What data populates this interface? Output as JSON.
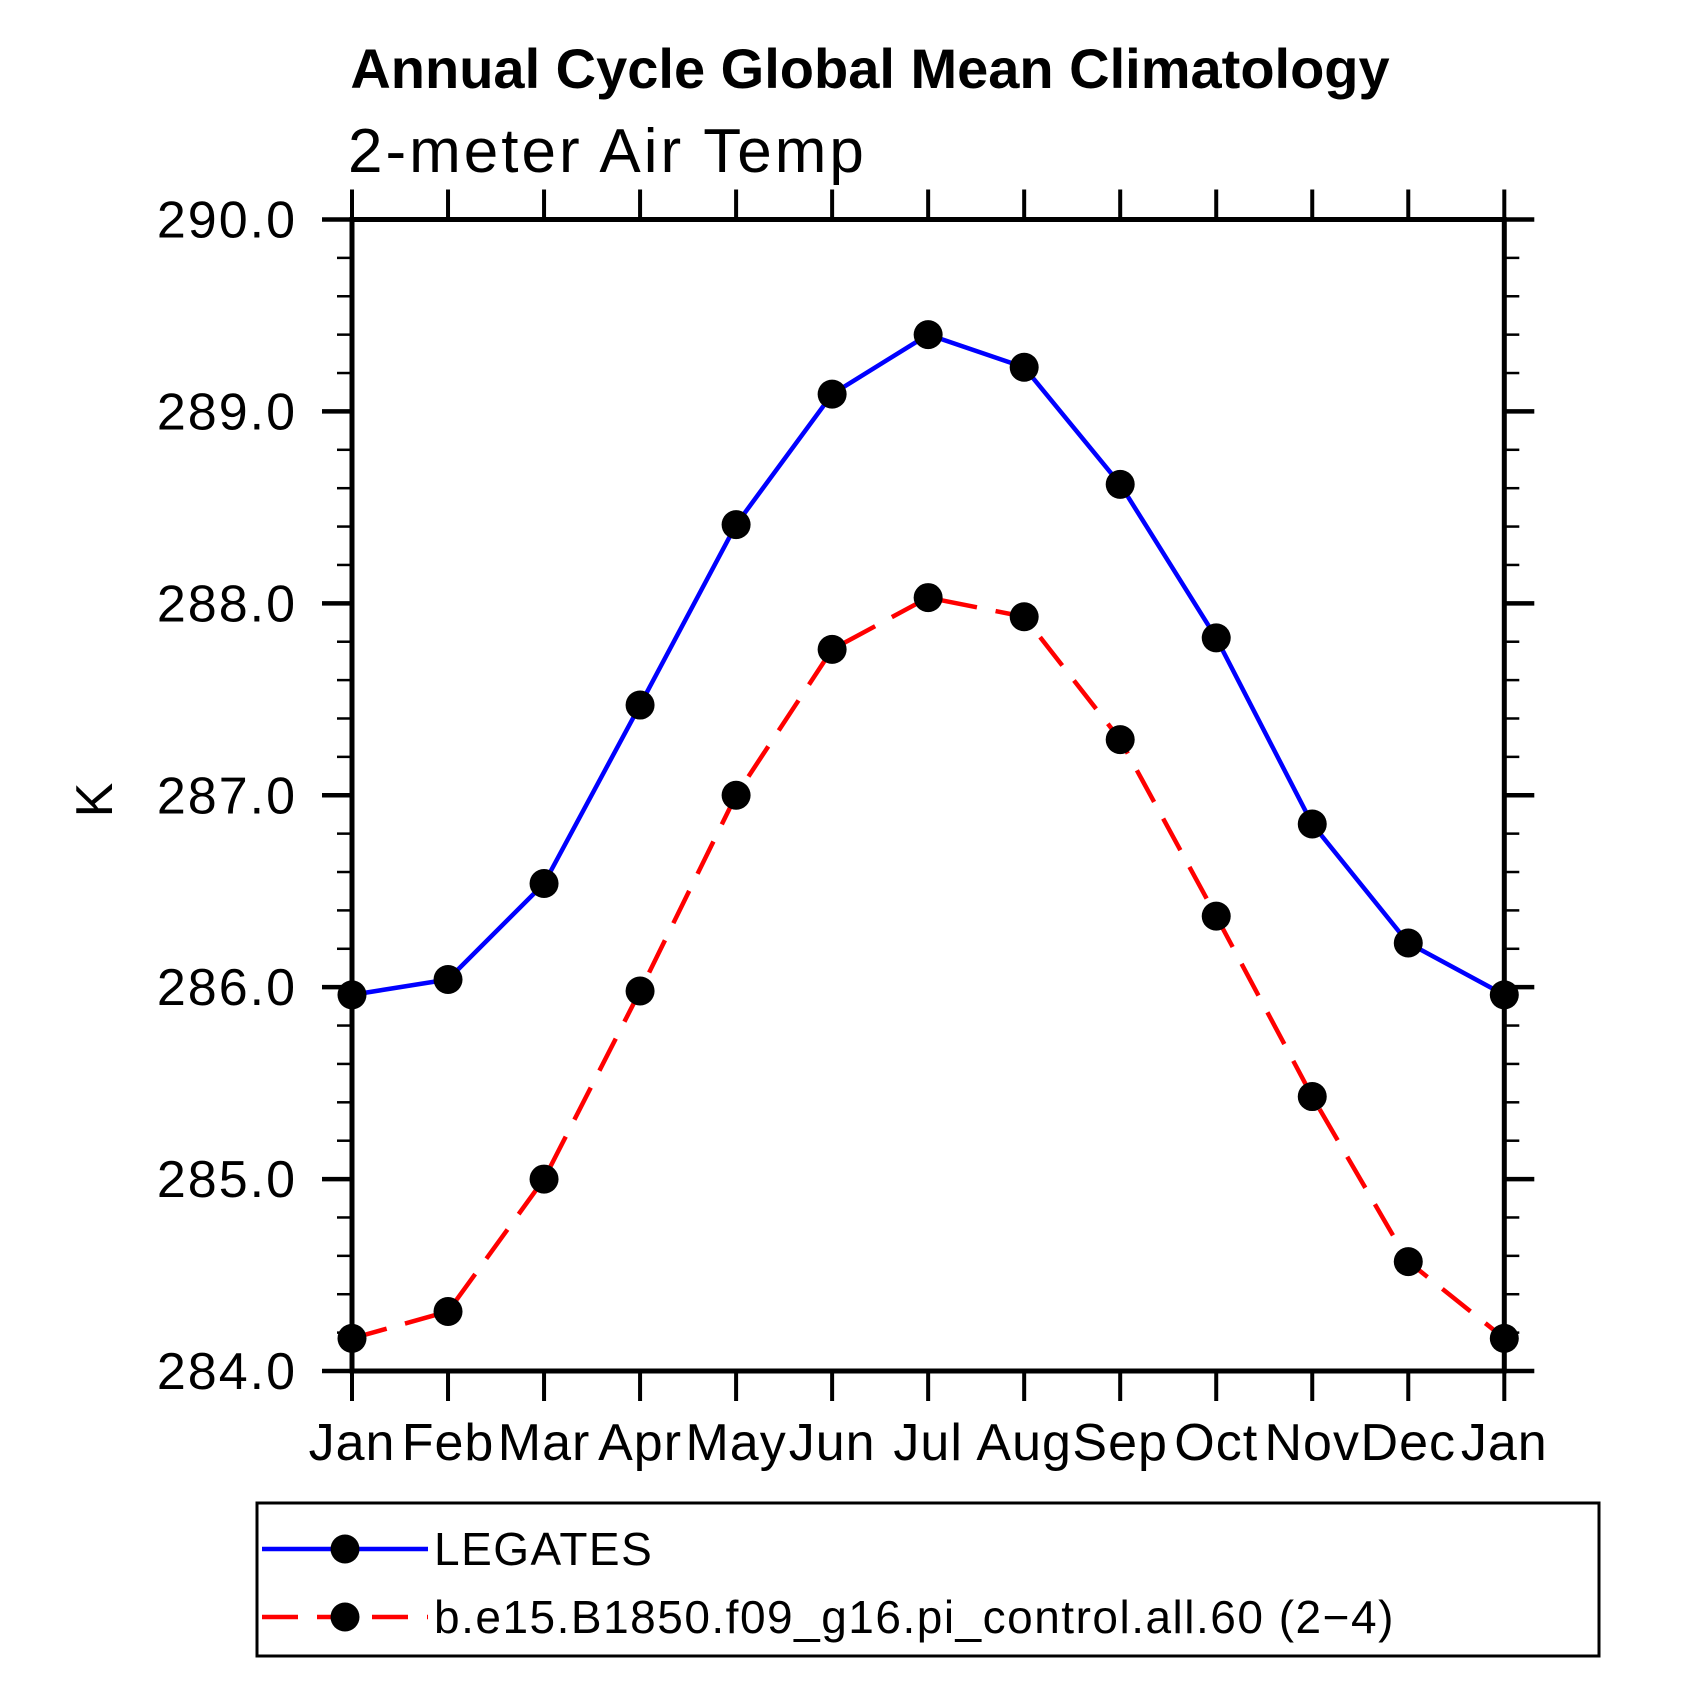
{
  "title": "Annual Cycle Global Mean Climatology",
  "subtitle": "2-meter Air Temp",
  "chart_data": {
    "type": "line",
    "title": "Annual Cycle Global Mean Climatology",
    "subtitle": "2-meter Air Temp",
    "ylabel": "K",
    "xlabel": "",
    "categories": [
      "Jan",
      "Feb",
      "Mar",
      "Apr",
      "May",
      "Jun",
      "Jul",
      "Aug",
      "Sep",
      "Oct",
      "Nov",
      "Dec",
      "Jan"
    ],
    "series": [
      {
        "name": "LEGATES",
        "color": "#0000ff",
        "line_style": "solid",
        "marker": "circle",
        "marker_color": "#000000",
        "values": [
          285.96,
          286.04,
          286.54,
          287.47,
          288.41,
          289.09,
          289.4,
          289.23,
          288.62,
          287.82,
          286.85,
          286.23,
          285.96
        ]
      },
      {
        "name": "b.e15.B1850.f09_g16.pi_control.all.60 (2−4)",
        "color": "#ff0000",
        "line_style": "dashed",
        "marker": "circle",
        "marker_color": "#000000",
        "values": [
          284.17,
          284.31,
          285.0,
          285.98,
          287.0,
          287.76,
          288.03,
          287.93,
          287.29,
          286.37,
          285.43,
          284.57,
          284.17
        ]
      }
    ],
    "ylim": [
      284.0,
      290.0
    ],
    "ytick_major_step": 1.0,
    "ytick_minor_step": 0.2,
    "ytick_labels": [
      "284.0",
      "285.0",
      "286.0",
      "287.0",
      "288.0",
      "289.0",
      "290.0"
    ],
    "grid": false,
    "legend_position": "bottom-left-box",
    "axis_color": "#000000",
    "background_color": "#ffffff"
  }
}
